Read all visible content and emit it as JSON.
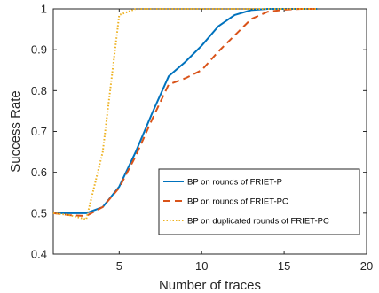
{
  "chart_data": {
    "type": "line",
    "xlabel": "Number of traces",
    "ylabel": "Success Rate",
    "xlim": [
      1,
      20
    ],
    "ylim": [
      0.4,
      1
    ],
    "xticks": [
      5,
      10,
      15,
      20
    ],
    "yticks": [
      0.4,
      0.5,
      0.6,
      0.7,
      0.8,
      0.9,
      1
    ],
    "grid": false,
    "legend_position": "bottom-right",
    "series": [
      {
        "name": "BP on rounds of FRIET-P",
        "color": "#0072BD",
        "line_style": "solid",
        "x": [
          1,
          2,
          3,
          4,
          5,
          6,
          7,
          8,
          9,
          10,
          11,
          12,
          13,
          14,
          15,
          16,
          17
        ],
        "y": [
          0.5,
          0.5,
          0.5,
          0.515,
          0.565,
          0.65,
          0.745,
          0.835,
          0.87,
          0.91,
          0.957,
          0.985,
          0.997,
          1,
          1,
          1,
          1
        ]
      },
      {
        "name": "BP on  rounds of FRIET-PC",
        "color": "#D95319",
        "line_style": "dashed",
        "x": [
          1,
          2,
          3,
          4,
          5,
          6,
          7,
          8,
          9,
          10,
          11,
          12,
          13,
          14,
          15,
          16,
          17
        ],
        "y": [
          0.5,
          0.495,
          0.493,
          0.515,
          0.562,
          0.64,
          0.73,
          0.815,
          0.83,
          0.85,
          0.895,
          0.935,
          0.975,
          0.993,
          0.998,
          1,
          1
        ]
      },
      {
        "name": "BP on duplicated rounds of FRIET-PC",
        "color": "#EDB120",
        "line_style": "dotted",
        "x": [
          1,
          2,
          3,
          4,
          5,
          6,
          7,
          8,
          9,
          10,
          11,
          12,
          13,
          14,
          15,
          16,
          17
        ],
        "y": [
          0.5,
          0.495,
          0.485,
          0.65,
          0.985,
          1,
          1,
          1,
          1,
          1,
          1,
          1,
          1,
          1,
          1,
          1,
          1
        ]
      }
    ]
  }
}
